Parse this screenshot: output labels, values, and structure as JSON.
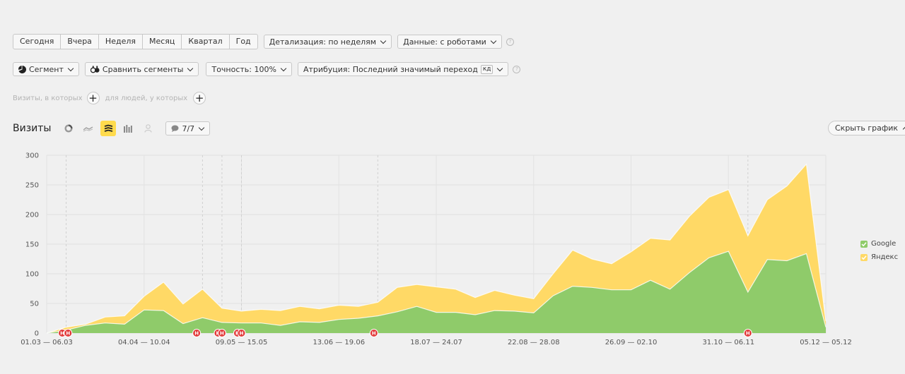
{
  "periods": [
    "Сегодня",
    "Вчера",
    "Неделя",
    "Месяц",
    "Квартал",
    "Год"
  ],
  "detail_label": "Детализация: по неделям",
  "data_label": "Данные: с роботами",
  "segment_label": "Сегмент",
  "compare_label": "Сравнить сегменты",
  "accuracy_label": "Точность: 100%",
  "attribution_label": "Атрибуция: Последний значимый переход",
  "attribution_badge": "кд",
  "filter_visits_label": "Визиты, в которых",
  "filter_people_label": "для людей, у которых",
  "metric_title": "Визиты",
  "comments_count": "7/7",
  "hide_chart_label": "Скрыть график",
  "chart_data": {
    "type": "area",
    "stacked": true,
    "grid": true,
    "legend_position": "right",
    "ylim": [
      0,
      300
    ],
    "y_ticks": [
      0,
      50,
      100,
      150,
      200,
      250,
      300
    ],
    "x_tick_labels": [
      "01.03 — 06.03",
      "04.04 — 10.04",
      "09.05 — 15.05",
      "13.06 — 19.06",
      "18.07 — 24.07",
      "22.08 — 28.08",
      "26.09 — 02.10",
      "31.10 — 06.11",
      "05.12 — 05.12"
    ],
    "x_tick_index": [
      0,
      5,
      10,
      15,
      20,
      25,
      30,
      35,
      40
    ],
    "series": [
      {
        "name": "Google",
        "color": "#8fcb6a",
        "values": [
          0,
          5,
          13,
          17,
          15,
          39,
          38,
          16,
          26,
          18,
          17,
          17,
          13,
          19,
          18,
          23,
          25,
          29,
          36,
          45,
          35,
          35,
          31,
          38,
          37,
          34,
          63,
          79,
          77,
          73,
          73,
          89,
          74,
          102,
          127,
          138,
          69,
          124,
          122,
          134,
          10
        ]
      },
      {
        "name": "Яндекс",
        "color": "#ffd966",
        "values": [
          0,
          5,
          2,
          10,
          14,
          23,
          48,
          33,
          48,
          24,
          20,
          23,
          25,
          26,
          23,
          24,
          20,
          23,
          41,
          37,
          43,
          39,
          29,
          34,
          27,
          24,
          37,
          61,
          48,
          44,
          64,
          71,
          83,
          95,
          102,
          104,
          95,
          101,
          126,
          151,
          10
        ]
      }
    ],
    "event_markers": {
      "label": "Н",
      "color": "#e23838",
      "positions": [
        0.8,
        1.1,
        7.7,
        8.8,
        9.0,
        9.8,
        10.0,
        16.8,
        36.0
      ]
    },
    "dashed_x": [
      1,
      8,
      9,
      10,
      17,
      36
    ]
  }
}
